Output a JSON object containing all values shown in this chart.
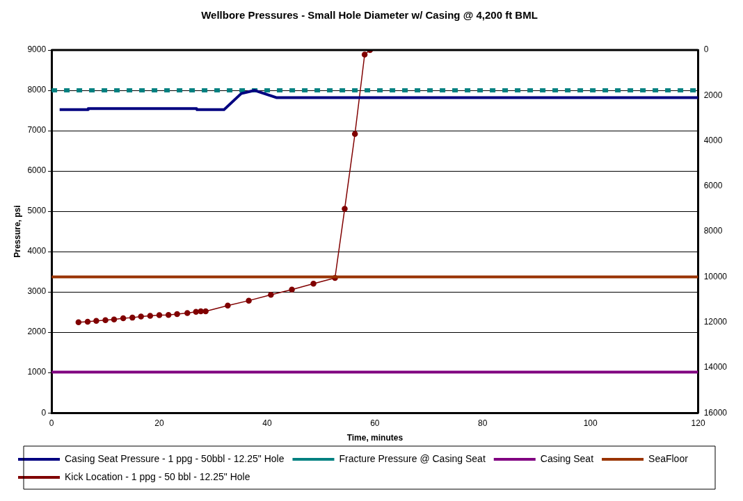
{
  "chart_data": {
    "type": "line",
    "title": "Wellbore Pressures - Small Hole Diameter w/ Casing @ 4,200 ft BML",
    "xlabel": "Time, minutes",
    "ylabel": "Pressure, psi",
    "xlim": [
      0,
      120
    ],
    "xticks": [
      0,
      20,
      40,
      60,
      80,
      100,
      120
    ],
    "ylim": [
      0,
      9000
    ],
    "yticks": [
      0,
      1000,
      2000,
      3000,
      4000,
      5000,
      6000,
      7000,
      8000,
      9000
    ],
    "y2lim": [
      16000,
      0
    ],
    "y2ticks": [
      0,
      2000,
      4000,
      6000,
      8000,
      10000,
      12000,
      14000,
      16000
    ],
    "grid": "y",
    "legend": "bottom",
    "marker": "none",
    "line_style": "solid",
    "series": [
      {
        "name": "Casing Seat Pressure - 1 ppg - 50bbl - 12.25\" Hole",
        "color": "#000080",
        "x": [
          1.5,
          6.8,
          6.8,
          26.9,
          27,
          32,
          35.2,
          37.7,
          41.7,
          120
        ],
        "values": [
          7520,
          7520,
          7550,
          7550,
          7520,
          7520,
          7920,
          8000,
          7820,
          7820
        ]
      },
      {
        "name": "Fracture Pressure @ Casing Seat",
        "color": "#008080",
        "line_style": "dashed",
        "x": [
          0,
          120
        ],
        "values": [
          8000,
          8000
        ]
      },
      {
        "name": "Casing Seat",
        "color": "#800080",
        "axis": "y2",
        "x": [
          0,
          120
        ],
        "values": [
          14200,
          14200
        ]
      },
      {
        "name": "SeaFloor",
        "color": "#993300",
        "axis": "y2",
        "x": [
          0,
          120
        ],
        "values": [
          10000,
          10000
        ]
      },
      {
        "name": "Kick Location - 1 ppg - 50 bbl - 12.25\" Hole",
        "color": "#800000",
        "axis": "y2",
        "marker": "circle",
        "x": [
          5,
          6.7,
          8.3,
          10,
          11.6,
          13.3,
          15,
          16.6,
          18.3,
          20,
          21.7,
          23.3,
          25.2,
          26.8,
          27.7,
          28.6,
          32.7,
          36.6,
          40.7,
          44.6,
          48.6,
          52.6,
          54.4,
          56.3,
          58.1,
          59.1
        ],
        "values": [
          12000,
          11980,
          11940,
          11910,
          11880,
          11830,
          11800,
          11750,
          11720,
          11690,
          11680,
          11640,
          11600,
          11540,
          11520,
          11520,
          11270,
          11050,
          10790,
          10560,
          10300,
          10050,
          7000,
          3700,
          200,
          0
        ]
      }
    ]
  }
}
